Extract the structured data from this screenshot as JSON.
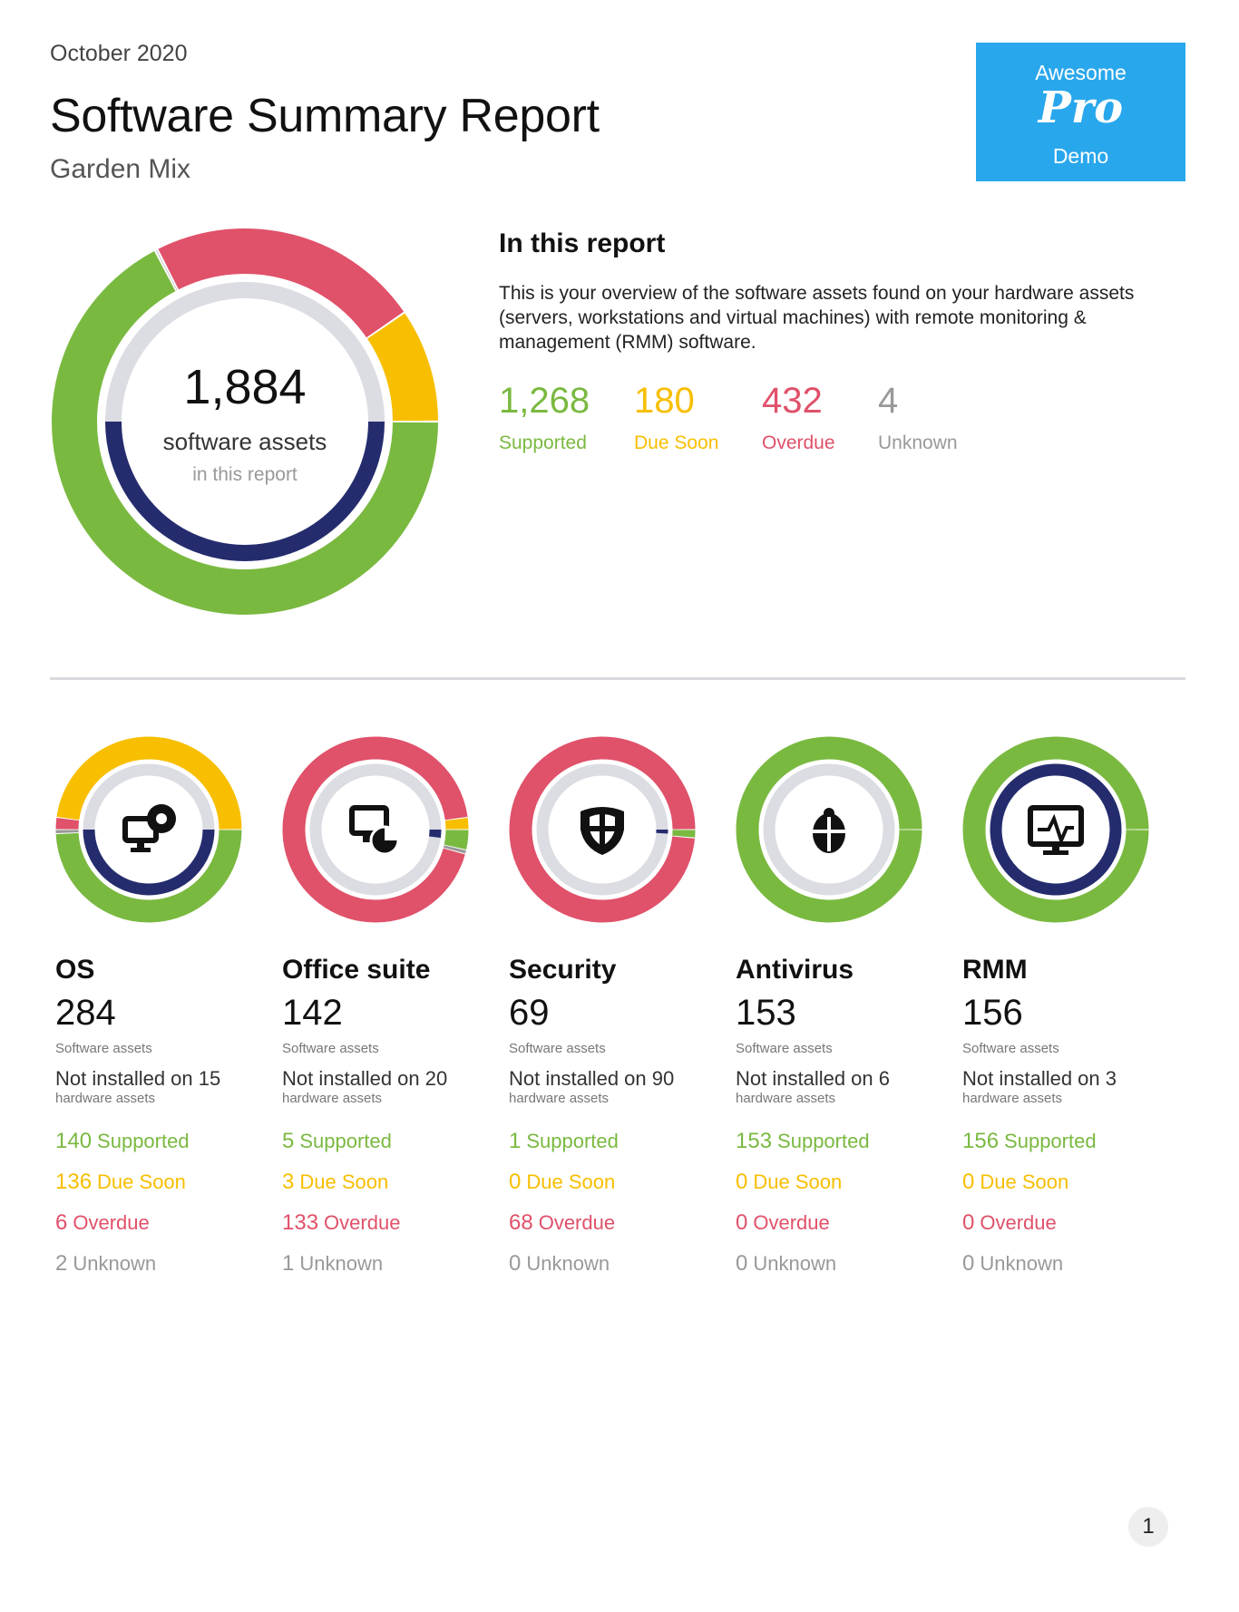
{
  "header": {
    "month": "October 2020",
    "title": "Software Summary Report",
    "subtitle": "Garden Mix"
  },
  "badge": {
    "line1": "Awesome",
    "logo": "Pro",
    "line3": "Demo"
  },
  "colors": {
    "supported": "#7ab940",
    "due_soon": "#f8be00",
    "overdue": "#e0516a",
    "unknown": "#999999",
    "inner": "#252c6e",
    "track": "#dcdde3"
  },
  "summary": {
    "total": "1,884",
    "total_label": "software assets",
    "total_sub": "in this report"
  },
  "intro": {
    "heading": "In this report",
    "body": "This is your overview of the software assets found on your hardware assets (servers, workstations and virtual machines) with remote monitoring & management (RMM) software."
  },
  "stats": [
    {
      "value": "1,268",
      "label": "Supported"
    },
    {
      "value": "180",
      "label": "Due Soon"
    },
    {
      "value": "432",
      "label": "Overdue"
    },
    {
      "value": "4",
      "label": "Unknown"
    }
  ],
  "chart_data": {
    "type": "pie",
    "categories": [
      "Supported",
      "Due Soon",
      "Overdue",
      "Unknown"
    ],
    "values": [
      1268,
      180,
      432,
      4
    ],
    "inner_ring_fraction": 0.5
  },
  "categories": [
    {
      "name": "OS",
      "icon": "computer-webcam-icon",
      "count": "284",
      "assets_label": "Software assets",
      "not_installed": "Not installed on 15",
      "hw_label": "hardware assets",
      "supported": "140",
      "due_soon": "136",
      "overdue": "6",
      "unknown": "2",
      "supported_label": "Supported",
      "due_label": "Due Soon",
      "overdue_label": "Overdue",
      "unknown_label": "Unknown",
      "inner_fraction": 0.5
    },
    {
      "name": "Office suite",
      "icon": "monitor-chart-icon",
      "count": "142",
      "assets_label": "Software assets",
      "not_installed": "Not installed on 20",
      "hw_label": "hardware assets",
      "supported": "5",
      "due_soon": "3",
      "overdue": "133",
      "unknown": "1",
      "supported_label": "Supported",
      "due_label": "Due Soon",
      "overdue_label": "Overdue",
      "unknown_label": "Unknown",
      "inner_fraction": 0.02
    },
    {
      "name": "Security",
      "icon": "shield-icon",
      "count": "69",
      "assets_label": "Software assets",
      "not_installed": "Not installed on 90",
      "hw_label": "hardware assets",
      "supported": "1",
      "due_soon": "0",
      "overdue": "68",
      "unknown": "0",
      "supported_label": "Supported",
      "due_label": "Due Soon",
      "overdue_label": "Overdue",
      "unknown_label": "Unknown",
      "inner_fraction": 0.01
    },
    {
      "name": "Antivirus",
      "icon": "bug-shield-icon",
      "count": "153",
      "assets_label": "Software assets",
      "not_installed": "Not installed on 6",
      "hw_label": "hardware assets",
      "supported": "153",
      "due_soon": "0",
      "overdue": "0",
      "unknown": "0",
      "supported_label": "Supported",
      "due_label": "Due Soon",
      "overdue_label": "Overdue",
      "unknown_label": "Unknown",
      "inner_fraction": 0
    },
    {
      "name": "RMM",
      "icon": "monitor-pulse-icon",
      "count": "156",
      "assets_label": "Software assets",
      "not_installed": "Not installed on 3",
      "hw_label": "hardware assets",
      "supported": "156",
      "due_soon": "0",
      "overdue": "0",
      "unknown": "0",
      "supported_label": "Supported",
      "due_label": "Due Soon",
      "overdue_label": "Overdue",
      "unknown_label": "Unknown",
      "inner_fraction": 1
    }
  ],
  "page_number": "1"
}
